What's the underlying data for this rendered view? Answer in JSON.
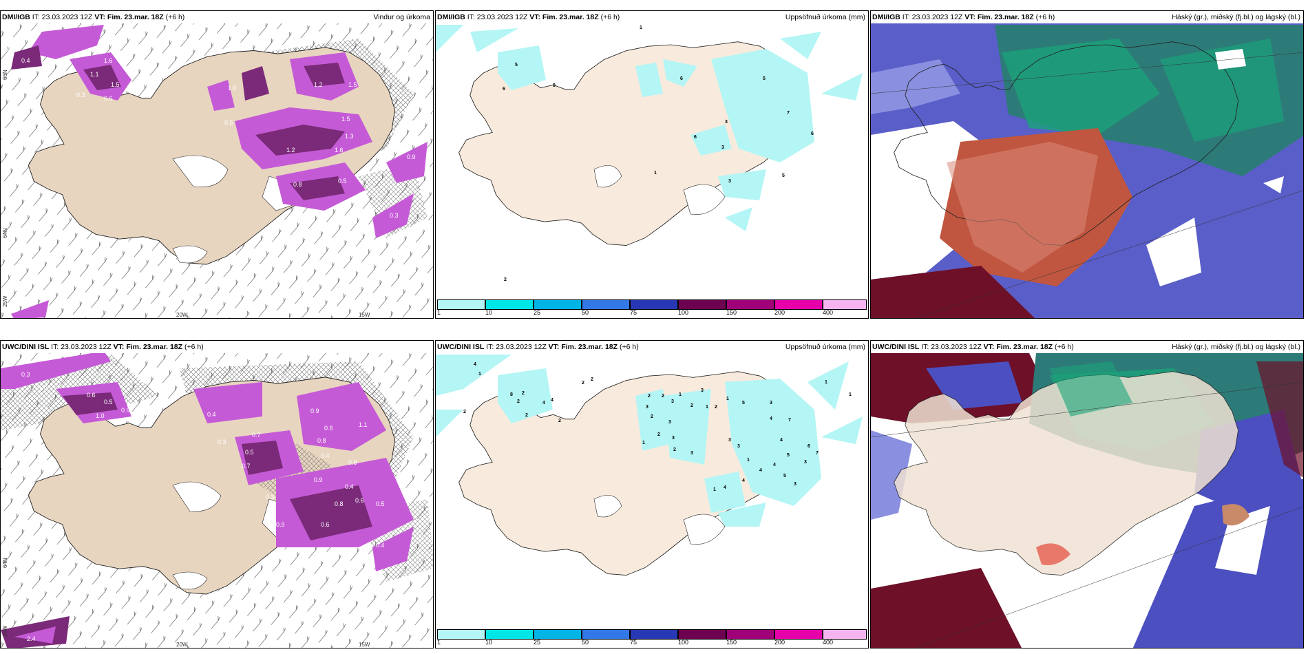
{
  "panels": {
    "p1": {
      "model": "DMI/IGB",
      "it_label": "IT:",
      "it_value": "23.03.2023 12Z",
      "vt_label": "VT: Fim. 23.mar. 18Z",
      "lead": "(+6 h)",
      "title": "Vindur og úrkoma"
    },
    "p2": {
      "model": "DMI/IGB",
      "it_label": "IT:",
      "it_value": "23.03.2023 12Z",
      "vt_label": "VT: Fim. 23.mar. 18Z",
      "lead": "(+6 h)",
      "title": "Uppsöfnuð úrkoma (mm)"
    },
    "p3": {
      "model": "DMI/IGB",
      "it_label": "IT:",
      "it_value": "23.03.2023 12Z",
      "vt_label": "VT: Fim. 23.mar. 18Z",
      "lead": "(+6 h)",
      "title": "Háský (gr.), miðský (fj.bl.) og lágský (bl.)"
    },
    "p4": {
      "model": "UWC/DINI ISL",
      "it_label": "IT:",
      "it_value": "23.03.2023 12Z",
      "vt_label": "VT: Fim. 23.mar. 18Z",
      "lead": "(+6 h)",
      "title": ""
    },
    "p5": {
      "model": "UWC/DINI ISL",
      "it_label": "IT:",
      "it_value": "23.03.2023 12Z",
      "vt_label": "VT: Fim. 23.mar. 18Z",
      "lead": "(+6 h)",
      "title": "Uppsöfnuð úrkoma (mm)"
    },
    "p6": {
      "model": "UWC/DINI ISL",
      "it_label": "IT:",
      "it_value": "23.03.2023 12Z",
      "vt_label": "VT: Fim. 23.mar. 18Z",
      "lead": "(+6 h)",
      "title": "Háský (gr.), miðský (fj.bl.) og lágský (bl.)"
    }
  },
  "axis_labels": {
    "lon_20w": "20W",
    "lon_15w": "15W",
    "lat_64n": "64N",
    "lat_65n": "65N",
    "lat_66n": "66N",
    "lon_25w": "25W",
    "lat_6n": "6N"
  },
  "colorbar": {
    "ticks": [
      "1",
      "10",
      "25",
      "50",
      "75",
      "100",
      "150",
      "200",
      "400"
    ],
    "colors": [
      "#b4f5f5",
      "#00e6e6",
      "#00b4e6",
      "#3278e6",
      "#2837b4",
      "#6e0050",
      "#a00078",
      "#e600aa",
      "#f5b4f0"
    ]
  },
  "precip_labels_p1": [
    "0.8",
    "0.4",
    "1.6",
    "1.1",
    "1.5",
    "0.6",
    "0.3",
    "1.2",
    "1.5",
    "0.5",
    "1.5",
    "1.3",
    "1.0",
    "1.2",
    "1.6",
    "0.3",
    "0.8",
    "0.5",
    "0.4",
    "0.9",
    "0.3"
  ],
  "precip_labels_p4": [
    "0.3",
    "1.0",
    "0.6",
    "0.5",
    "1.0",
    "0.9",
    "0.4",
    "0.7",
    "0.9",
    "0.6",
    "0.3",
    "0.8",
    "1.1",
    "0.5",
    "0.4",
    "0.7",
    "0.8",
    "0.9",
    "0.4",
    "0.6",
    "0.5",
    "0.8",
    "0.6",
    "0.9",
    "2.4",
    "0.3",
    "0.4"
  ],
  "accum_labels_p2": [
    "1",
    "5",
    "6",
    "8",
    "6",
    "5",
    "7",
    "6",
    "3",
    "3",
    "1",
    "2",
    "3",
    "6",
    "5"
  ],
  "accum_labels_p5": [
    "4",
    "1",
    "2",
    "8",
    "2",
    "2",
    "4",
    "4",
    "2",
    "2",
    "2",
    "2",
    "3",
    "2",
    "1",
    "3",
    "3",
    "2",
    "1",
    "2",
    "3",
    "5",
    "3",
    "2",
    "1",
    "1",
    "4",
    "7",
    "2",
    "3",
    "3",
    "3",
    "2",
    "1",
    "3",
    "4",
    "1",
    "4",
    "5",
    "4",
    "3",
    "5",
    "3",
    "4",
    "6",
    "7",
    "1",
    "1",
    "4",
    "2"
  ],
  "colors": {
    "land": "#e8d5c0",
    "magenta": "#c55ad6",
    "dark_magenta": "#7a2a78",
    "cyan": "#b4f5f5",
    "cloud_blue": "#4b4fc0",
    "cloud_green": "#1aa37a",
    "cloud_dark": "#6e1028",
    "cloud_red": "#c0563f",
    "cloud_teal": "#2d7b78"
  }
}
